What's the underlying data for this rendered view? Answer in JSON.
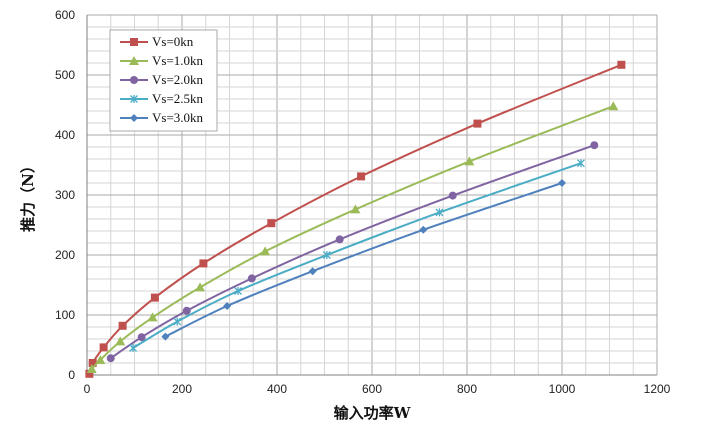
{
  "chart_data": {
    "type": "line",
    "title": "",
    "xlabel": "输入功率W",
    "ylabel": "推力（N）",
    "xlim": [
      0,
      1200
    ],
    "ylim": [
      0,
      600
    ],
    "xticks": [
      0,
      200,
      400,
      600,
      800,
      1000,
      1200
    ],
    "yticks": [
      0,
      100,
      200,
      300,
      400,
      500,
      600
    ],
    "grid": "on",
    "legend_placement": "top-left",
    "series": [
      {
        "name": "Vs=0kn",
        "color": "#C0504D",
        "marker": "square",
        "points": [
          [
            5,
            2
          ],
          [
            12,
            20
          ],
          [
            35,
            46
          ],
          [
            75,
            82
          ],
          [
            143,
            129
          ],
          [
            245,
            186
          ],
          [
            388,
            253
          ],
          [
            577,
            331
          ],
          [
            822,
            419
          ],
          [
            1125,
            517
          ]
        ]
      },
      {
        "name": "Vs=1.0kn",
        "color": "#9BBB59",
        "marker": "triangle",
        "points": [
          [
            10,
            10
          ],
          [
            28,
            25
          ],
          [
            70,
            56
          ],
          [
            138,
            96
          ],
          [
            238,
            146
          ],
          [
            375,
            206
          ],
          [
            565,
            276
          ],
          [
            805,
            356
          ],
          [
            1108,
            448
          ]
        ]
      },
      {
        "name": "Vs=2.0kn",
        "color": "#8064A2",
        "marker": "circle",
        "points": [
          [
            50,
            28
          ],
          [
            115,
            63
          ],
          [
            210,
            107
          ],
          [
            347,
            161
          ],
          [
            532,
            226
          ],
          [
            770,
            299
          ],
          [
            1068,
            383
          ]
        ]
      },
      {
        "name": "Vs=2.5kn",
        "color": "#4BACC6",
        "marker": "x",
        "points": [
          [
            97,
            45
          ],
          [
            190,
            89
          ],
          [
            318,
            140
          ],
          [
            505,
            200
          ],
          [
            742,
            271
          ],
          [
            1040,
            353
          ]
        ]
      },
      {
        "name": "Vs=3.0kn",
        "color": "#4F81BD",
        "marker": "diamond",
        "points": [
          [
            165,
            64
          ],
          [
            295,
            115
          ],
          [
            475,
            173
          ],
          [
            708,
            242
          ],
          [
            1000,
            320
          ]
        ]
      }
    ]
  }
}
